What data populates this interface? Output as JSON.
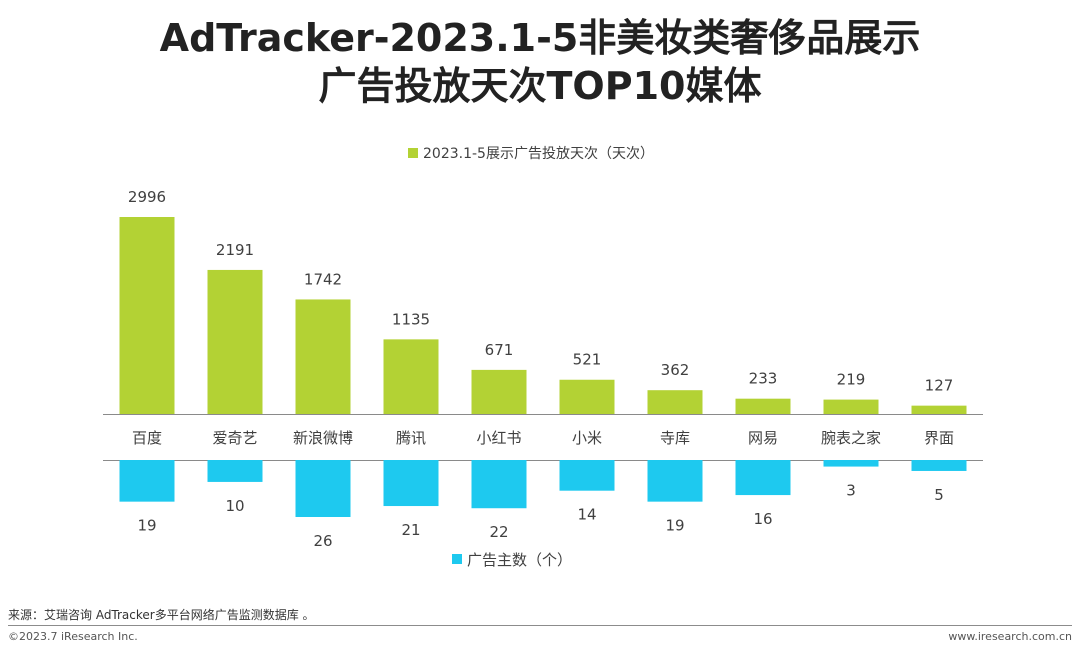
{
  "title": {
    "line1": "AdTracker-2023.1-5非美妆类奢侈品展示",
    "line2": "广告投放天次TOP10媒体"
  },
  "chart_data": {
    "type": "bar",
    "categories": [
      "百度",
      "爱奇艺",
      "新浪微博",
      "腾讯",
      "小红书",
      "小米",
      "寺库",
      "网易",
      "腕表之家",
      "界面"
    ],
    "series": [
      {
        "name": "2023.1-5展示广告投放天次（天次）",
        "color": "#b3d234",
        "direction": "up",
        "values": [
          2996,
          2191,
          1742,
          1135,
          671,
          521,
          362,
          233,
          219,
          127
        ]
      },
      {
        "name": "广告主数（个）",
        "color": "#1ec9ef",
        "direction": "down",
        "values": [
          19,
          10,
          26,
          21,
          22,
          14,
          19,
          16,
          3,
          5
        ]
      }
    ],
    "legend_position": "top / bottom",
    "grid": false
  },
  "footer": {
    "source": "来源：艾瑞咨询 AdTracker多平台网络广告监测数据库 。",
    "copyright": "©2023.7 iResearch Inc.",
    "website": "www.iresearch.com.cn"
  }
}
